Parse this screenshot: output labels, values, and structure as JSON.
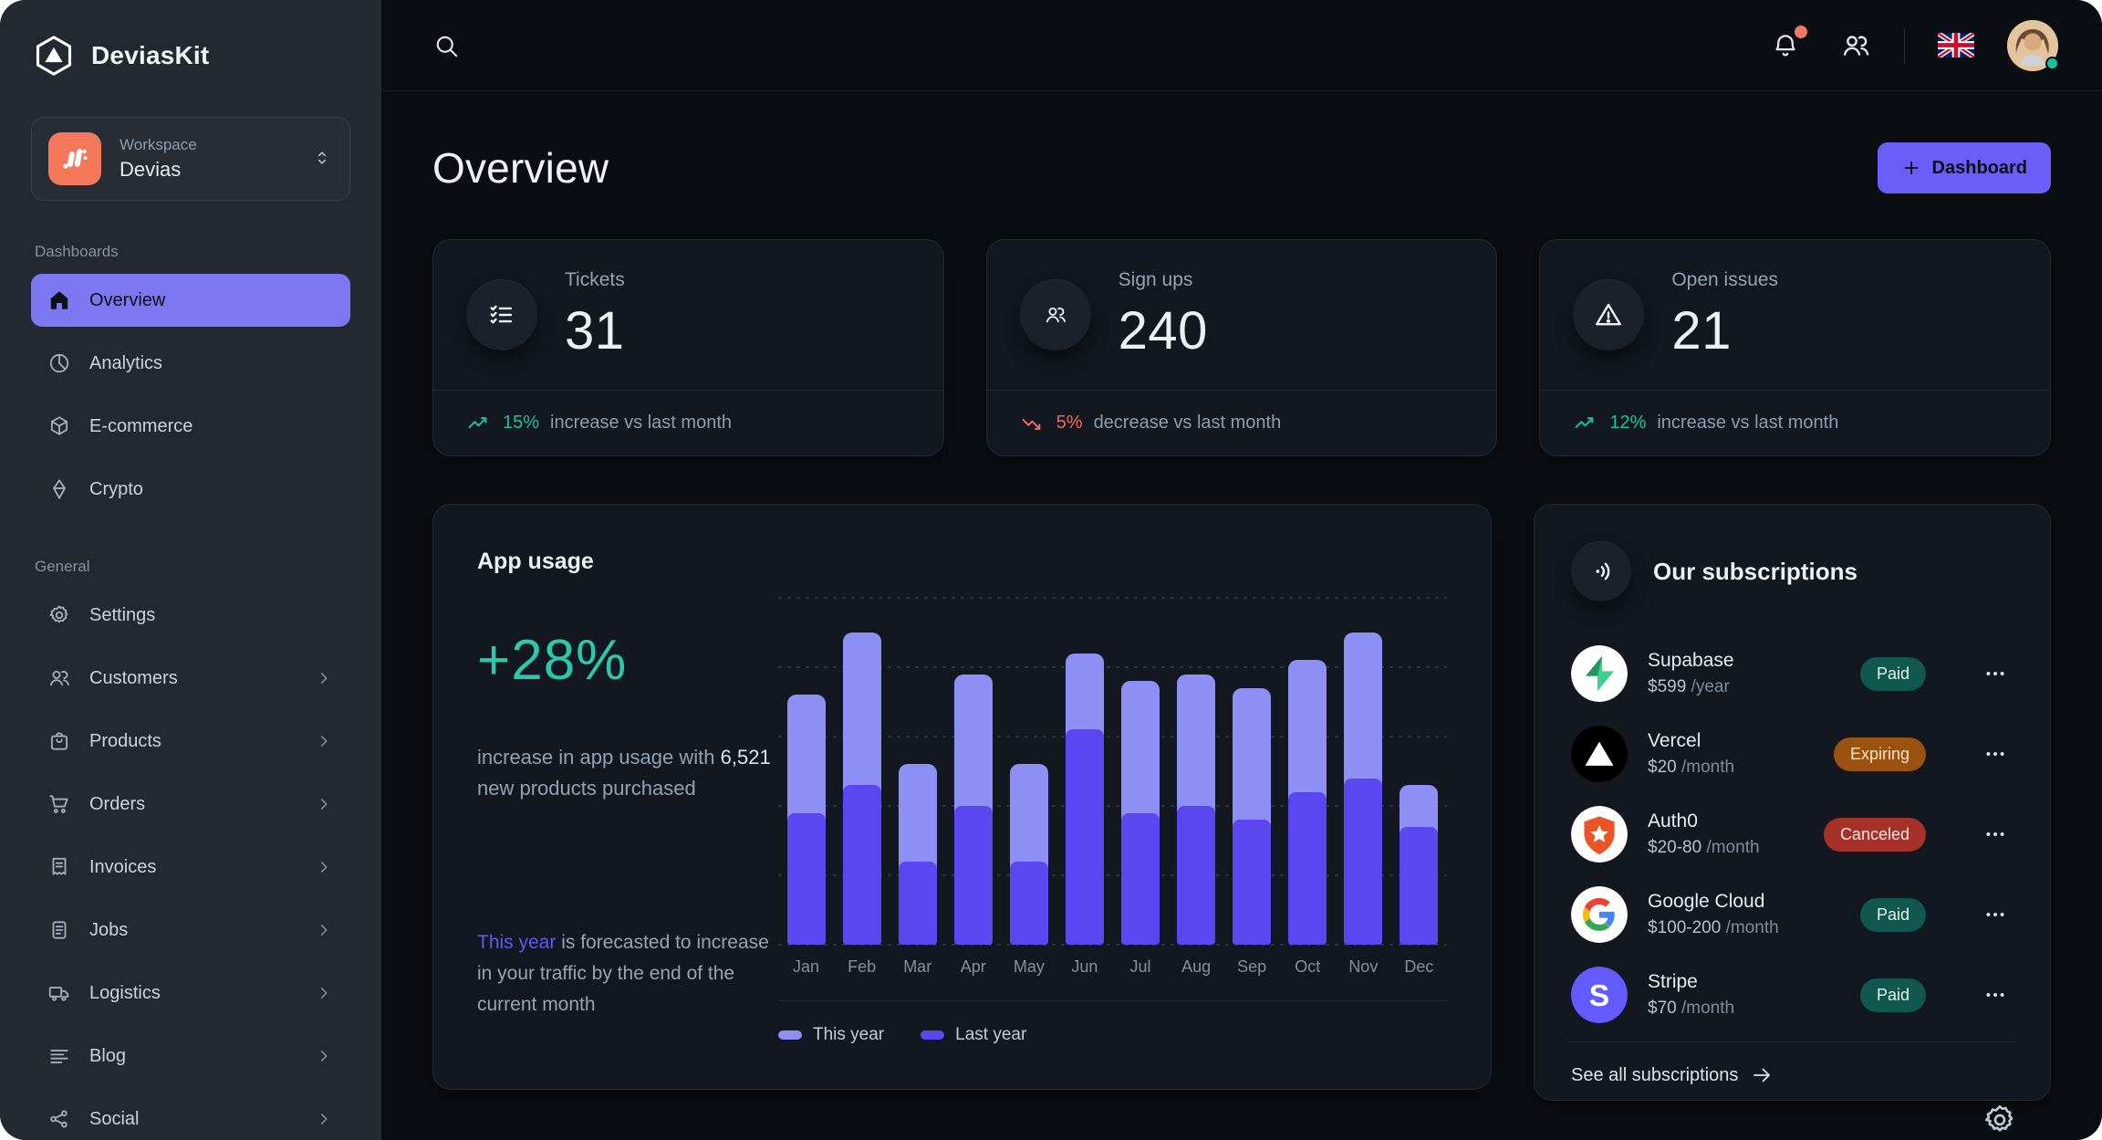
{
  "colors": {
    "accent_primary": "#6a5df8",
    "nav_active": "#7b78f2",
    "success": "#1cc1a5",
    "error": "#f2695e",
    "link": "#5f5af0",
    "badge_paid_bg": "#10584d",
    "badge_expiring_bg": "#9a5210",
    "badge_canceled_bg": "#a53129",
    "workspace_logo_bg": "#f4795b"
  },
  "sidebar": {
    "brand": "DeviasKit",
    "workspace": {
      "label": "Workspace",
      "value": "Devias"
    },
    "sections": [
      {
        "label": "Dashboards",
        "items": [
          {
            "label": "Overview",
            "icon": "home-icon",
            "active": true,
            "chevron": false
          },
          {
            "label": "Analytics",
            "icon": "pie-chart-icon",
            "active": false,
            "chevron": false
          },
          {
            "label": "E-commerce",
            "icon": "cube-icon",
            "active": false,
            "chevron": false
          },
          {
            "label": "Crypto",
            "icon": "diamond-icon",
            "active": false,
            "chevron": false
          }
        ]
      },
      {
        "label": "General",
        "items": [
          {
            "label": "Settings",
            "icon": "gear-icon",
            "active": false,
            "chevron": false
          },
          {
            "label": "Customers",
            "icon": "users-icon",
            "active": false,
            "chevron": true
          },
          {
            "label": "Products",
            "icon": "bag-icon",
            "active": false,
            "chevron": true
          },
          {
            "label": "Orders",
            "icon": "cart-icon",
            "active": false,
            "chevron": true
          },
          {
            "label": "Invoices",
            "icon": "invoice-icon",
            "active": false,
            "chevron": true
          },
          {
            "label": "Jobs",
            "icon": "document-icon",
            "active": false,
            "chevron": true
          },
          {
            "label": "Logistics",
            "icon": "truck-icon",
            "active": false,
            "chevron": true
          },
          {
            "label": "Blog",
            "icon": "lines-icon",
            "active": false,
            "chevron": true
          },
          {
            "label": "Social",
            "icon": "share-icon",
            "active": false,
            "chevron": true
          }
        ]
      }
    ]
  },
  "header": {
    "icons": [
      "search-icon",
      "bell-icon",
      "users-icon",
      "uk-flag",
      "avatar"
    ],
    "notification_dot": true,
    "avatar_status": "online"
  },
  "page": {
    "title": "Overview",
    "primary_button": {
      "label": "Dashboard",
      "icon": "plus-icon"
    }
  },
  "stats": [
    {
      "label": "Tickets",
      "value": "31",
      "icon": "list-checks-icon",
      "trend": "up",
      "trend_value": "15%",
      "trend_text": "increase vs last month"
    },
    {
      "label": "Sign ups",
      "value": "240",
      "icon": "users-icon",
      "trend": "down",
      "trend_value": "5%",
      "trend_text": "decrease vs last month"
    },
    {
      "label": "Open issues",
      "value": "21",
      "icon": "warning-icon",
      "trend": "up",
      "trend_value": "12%",
      "trend_text": "increase vs last month"
    }
  ],
  "app_usage": {
    "title": "App usage",
    "highlight": "+28%",
    "description_prefix": "increase in app usage with",
    "description_strong": "6,521",
    "description_suffix": "new products purchased",
    "footnote_link": "This year",
    "footnote_rest": "is forecasted to increase in your traffic by the end of the current month"
  },
  "chart_data": {
    "type": "bar",
    "variant": "stacked-overlap",
    "title": "App usage",
    "categories": [
      "Jan",
      "Feb",
      "Mar",
      "Apr",
      "May",
      "Jun",
      "Jul",
      "Aug",
      "Sep",
      "Oct",
      "Nov",
      "Dec"
    ],
    "series": [
      {
        "name": "This year",
        "color": "#8f90f6",
        "values": [
          36,
          45,
          26,
          39,
          26,
          42,
          38,
          39,
          37,
          41,
          45,
          23
        ]
      },
      {
        "name": "Last year",
        "color": "#5b47f0",
        "values": [
          19,
          23,
          12,
          20,
          12,
          31,
          19,
          20,
          18,
          22,
          24,
          17
        ]
      }
    ],
    "xlabel": "",
    "ylabel": "",
    "ylim": [
      0,
      50
    ],
    "y_axis_visible": false,
    "grid": "dotted-horizontal",
    "gridline_step": 10,
    "legend_position": "bottom-left"
  },
  "subscriptions": {
    "title": "Our subscriptions",
    "icon": "contactless-icon",
    "items": [
      {
        "name": "Supabase",
        "logo": "supabase-logo",
        "price": "$599",
        "period": "/year",
        "status": "paid",
        "status_label": "Paid"
      },
      {
        "name": "Vercel",
        "logo": "vercel-logo",
        "price": "$20",
        "period": "/month",
        "status": "expiring",
        "status_label": "Expiring"
      },
      {
        "name": "Auth0",
        "logo": "auth0-logo",
        "price": "$20-80",
        "period": "/month",
        "status": "canceled",
        "status_label": "Canceled"
      },
      {
        "name": "Google Cloud",
        "logo": "google-logo",
        "price": "$100-200",
        "period": "/month",
        "status": "paid",
        "status_label": "Paid"
      },
      {
        "name": "Stripe",
        "logo": "stripe-logo",
        "price": "$70",
        "period": "/month",
        "status": "paid",
        "status_label": "Paid"
      }
    ],
    "see_all": "See all subscriptions"
  }
}
